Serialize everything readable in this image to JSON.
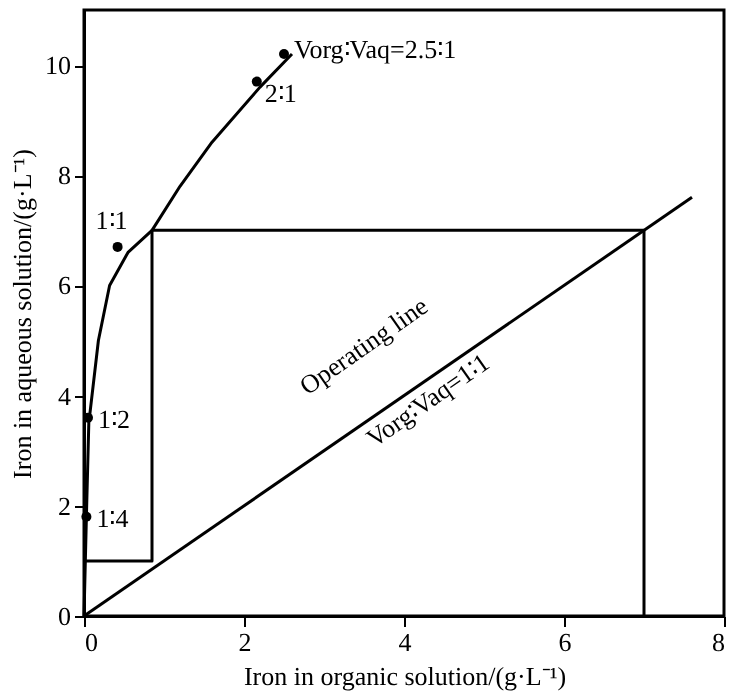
{
  "chart_data": {
    "type": "line",
    "xlabel": "Iron in organic solution/(g·L⁻¹)",
    "ylabel": "Iron in aqueous solution/(g·L⁻¹)",
    "series": [
      {
        "color": "#000000",
        "x": [
          0,
          0.03,
          0.06,
          0.18,
          0.32,
          0.55,
          0.85,
          1.2,
          1.6,
          2.2,
          2.6
        ],
        "values": [
          0,
          1.8,
          3.5,
          5,
          6,
          6.6,
          7,
          7.8,
          8.6,
          9.6,
          10.2
        ]
      },
      {
        "color": "#000000",
        "x": [
          0,
          7.6
        ],
        "values": [
          0,
          7.6
        ]
      },
      {
        "color": "#000000",
        "x": [
          7,
          7,
          0.85,
          0.85,
          0
        ],
        "values": [
          0,
          7,
          7,
          1,
          1
        ]
      },
      {
        "type": "scatter",
        "marker": "circle",
        "color": "#000000",
        "x": [
          0.03,
          0.05,
          0.42,
          2.16,
          2.5
        ],
        "values": [
          1.8,
          3.6,
          6.7,
          9.7,
          10.2
        ]
      }
    ],
    "annotations": [
      {
        "text": "1∶4",
        "x": 0.03,
        "y": 1.8
      },
      {
        "text": "1∶2",
        "x": 0.05,
        "y": 3.6
      },
      {
        "text": "1∶1",
        "x": 0.42,
        "y": 6.7
      },
      {
        "text": "2∶1",
        "x": 2.16,
        "y": 9.7
      },
      {
        "text": "Vorg∶Vaq=2.5∶1",
        "x": 2.5,
        "y": 10.2
      },
      "Operating line",
      "Vorg∶Vaq=1∶1"
    ],
    "xlim": [
      0,
      8
    ],
    "ylim": [
      0,
      11
    ],
    "xticks": [
      0,
      2,
      4,
      6,
      8
    ],
    "yticks": [
      0,
      2,
      4,
      6,
      8,
      10
    ],
    "grid": false,
    "line_style": "solid"
  }
}
